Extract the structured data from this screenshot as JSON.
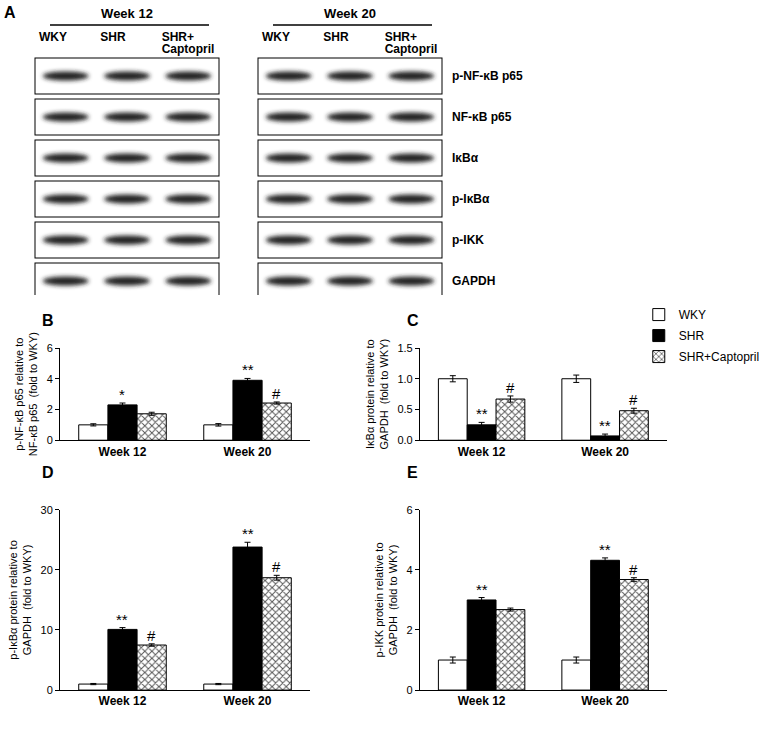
{
  "panel_a": {
    "label": "A",
    "blocks": [
      {
        "title": "Week 12",
        "lanes": [
          [
            "WKY"
          ],
          [
            "SHR"
          ],
          [
            "SHR+",
            "Captopril"
          ]
        ]
      },
      {
        "title": "Week 20",
        "lanes": [
          [
            "WKY"
          ],
          [
            "SHR"
          ],
          [
            "SHR+",
            "Captopril"
          ]
        ]
      }
    ],
    "rows": [
      "p-NF-κB p65",
      "NF-κB p65",
      "IκBα",
      "p-IκBα",
      "p-IKK",
      "GAPDH"
    ]
  },
  "chart_data": [
    {
      "label": "B",
      "type": "bar",
      "y_label": [
        "p-NF-κB p65 relative to",
        "NF-κB p65  (fold to WKY)"
      ],
      "categories": [
        "Week 12",
        "Week 20"
      ],
      "series": [
        {
          "name": "WKY",
          "color": "#ffffff",
          "values": [
            1.0,
            1.0
          ],
          "errors": [
            0.07,
            0.08
          ]
        },
        {
          "name": "SHR",
          "color": "#000000",
          "values": [
            2.3,
            3.9
          ],
          "errors": [
            0.12,
            0.12
          ]
        },
        {
          "name": "SHR+Captopril",
          "color": "#ffffff",
          "marker": "crosshatch",
          "values": [
            1.72,
            2.42
          ],
          "errors": [
            0.1,
            0.07
          ]
        }
      ],
      "ylim": [
        0,
        6
      ],
      "yticks": [
        0,
        2,
        4,
        6
      ],
      "annotations": [
        {
          "category": "Week 12",
          "series": "SHR",
          "text": "*"
        },
        {
          "category": "Week 20",
          "series": "SHR",
          "text": "**"
        },
        {
          "category": "Week 20",
          "series": "SHR+Captopril",
          "text": "#"
        }
      ]
    },
    {
      "label": "C",
      "type": "bar",
      "legend": "top right",
      "y_label": [
        "IκBα protein relative to",
        "GAPDH  (fold to WKY)"
      ],
      "categories": [
        "Week 12",
        "Week 20"
      ],
      "series": [
        {
          "name": "WKY",
          "color": "#ffffff",
          "values": [
            1.0,
            1.0
          ],
          "errors": [
            0.05,
            0.06
          ]
        },
        {
          "name": "SHR",
          "color": "#000000",
          "values": [
            0.25,
            0.07
          ],
          "errors": [
            0.04,
            0.03
          ]
        },
        {
          "name": "SHR+Captopril",
          "color": "#ffffff",
          "marker": "crosshatch",
          "values": [
            0.67,
            0.48
          ],
          "errors": [
            0.05,
            0.04
          ]
        }
      ],
      "ylim": [
        0,
        1.5
      ],
      "yticks": [
        {
          "value": 0,
          "label": "0.0"
        },
        {
          "value": 0.5,
          "label": "0.5"
        },
        {
          "value": 1,
          "label": "1.0"
        },
        {
          "value": 1.5,
          "label": "1.5"
        }
      ],
      "annotations": [
        {
          "category": "Week 12",
          "series": "SHR",
          "text": "**"
        },
        {
          "category": "Week 12",
          "series": "SHR+Captopril",
          "text": "#"
        },
        {
          "category": "Week 20",
          "series": "SHR",
          "text": "**"
        },
        {
          "category": "Week 20",
          "series": "SHR+Captopril",
          "text": "#"
        }
      ]
    },
    {
      "label": "D",
      "type": "bar",
      "y_label": [
        "p-IκBα protein relative to",
        "GAPDH  (fold to WKY)"
      ],
      "categories": [
        "Week 12",
        "Week 20"
      ],
      "series": [
        {
          "name": "WKY",
          "color": "#ffffff",
          "values": [
            1.0,
            1.0
          ],
          "errors": [
            0.1,
            0.1
          ]
        },
        {
          "name": "SHR",
          "color": "#000000",
          "values": [
            10.1,
            23.8
          ],
          "errors": [
            0.3,
            0.8
          ]
        },
        {
          "name": "SHR+Captopril",
          "color": "#ffffff",
          "marker": "crosshatch",
          "values": [
            7.5,
            18.7
          ],
          "errors": [
            0.2,
            0.4
          ]
        }
      ],
      "ylim": [
        0,
        30
      ],
      "yticks": [
        0,
        10,
        20,
        30
      ],
      "annotations": [
        {
          "category": "Week 12",
          "series": "SHR",
          "text": "**"
        },
        {
          "category": "Week 12",
          "series": "SHR+Captopril",
          "text": "#"
        },
        {
          "category": "Week 20",
          "series": "SHR",
          "text": "**"
        },
        {
          "category": "Week 20",
          "series": "SHR+Captopril",
          "text": "#"
        }
      ]
    },
    {
      "label": "E",
      "type": "bar",
      "y_label": [
        "p-IKK protein relative to",
        "GAPDH  (fold to WKY)"
      ],
      "categories": [
        "Week 12",
        "Week 20"
      ],
      "series": [
        {
          "name": "WKY",
          "color": "#ffffff",
          "values": [
            1.0,
            1.0
          ],
          "errors": [
            0.1,
            0.1
          ]
        },
        {
          "name": "SHR",
          "color": "#000000",
          "values": [
            3.0,
            4.32
          ],
          "errors": [
            0.08,
            0.08
          ]
        },
        {
          "name": "SHR+Captopril",
          "color": "#ffffff",
          "marker": "crosshatch",
          "values": [
            2.68,
            3.68
          ],
          "errors": [
            0.05,
            0.06
          ]
        }
      ],
      "ylim": [
        0,
        6
      ],
      "yticks": [
        0,
        2,
        4,
        6
      ],
      "annotations": [
        {
          "category": "Week 12",
          "series": "SHR",
          "text": "**"
        },
        {
          "category": "Week 20",
          "series": "SHR",
          "text": "**"
        },
        {
          "category": "Week 20",
          "series": "SHR+Captopril",
          "text": "#"
        }
      ]
    }
  ]
}
